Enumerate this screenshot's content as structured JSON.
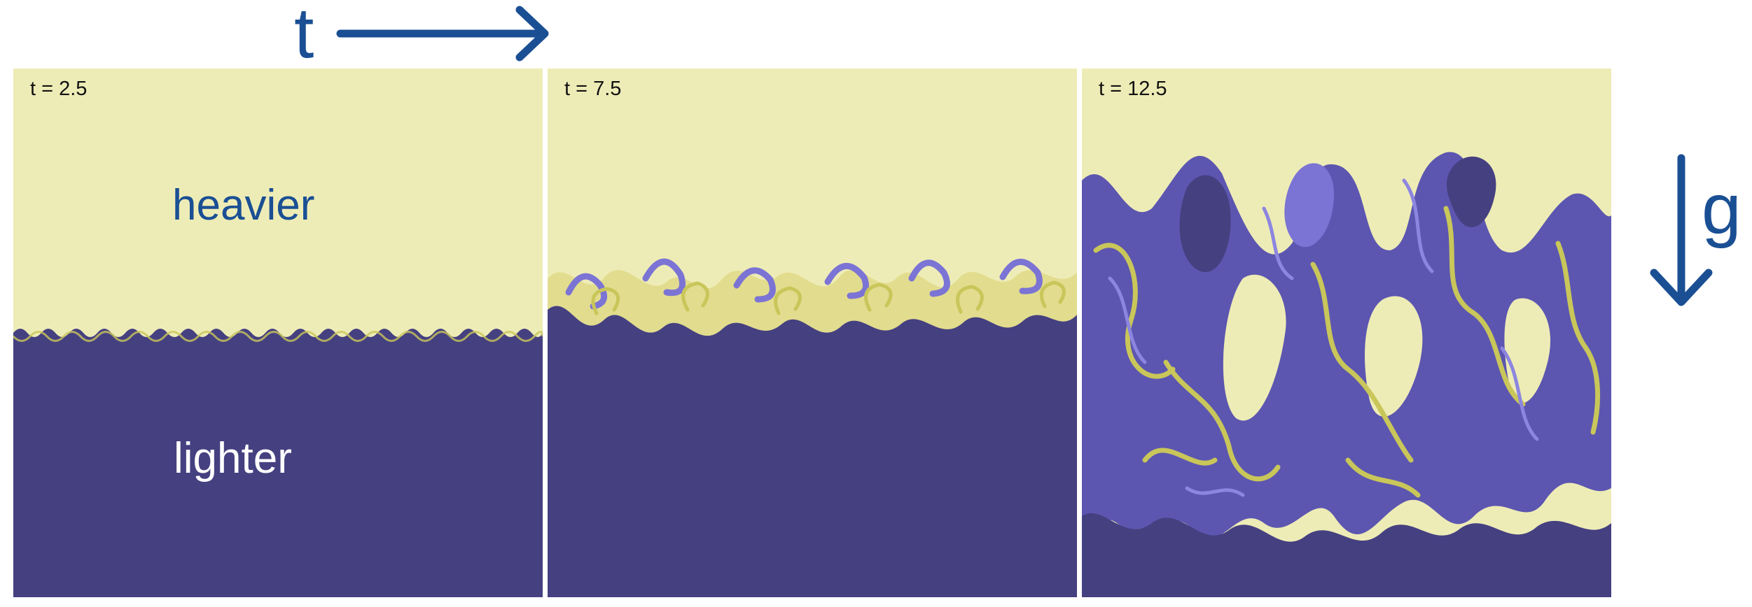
{
  "time_axis": {
    "label": "t"
  },
  "gravity": {
    "label": "g"
  },
  "panels": [
    {
      "time": "t = 2.5"
    },
    {
      "time": "t = 7.5"
    },
    {
      "time": "t = 12.5"
    }
  ],
  "fluids": {
    "upper": "heavier",
    "lower": "lighter"
  },
  "colors": {
    "heavy_fluid": "#eeecb6",
    "light_fluid": "#454080",
    "mixing_yellow": "#c9c65a",
    "mixing_blue": "#7b74d4",
    "annotation": "#1a4f94"
  }
}
